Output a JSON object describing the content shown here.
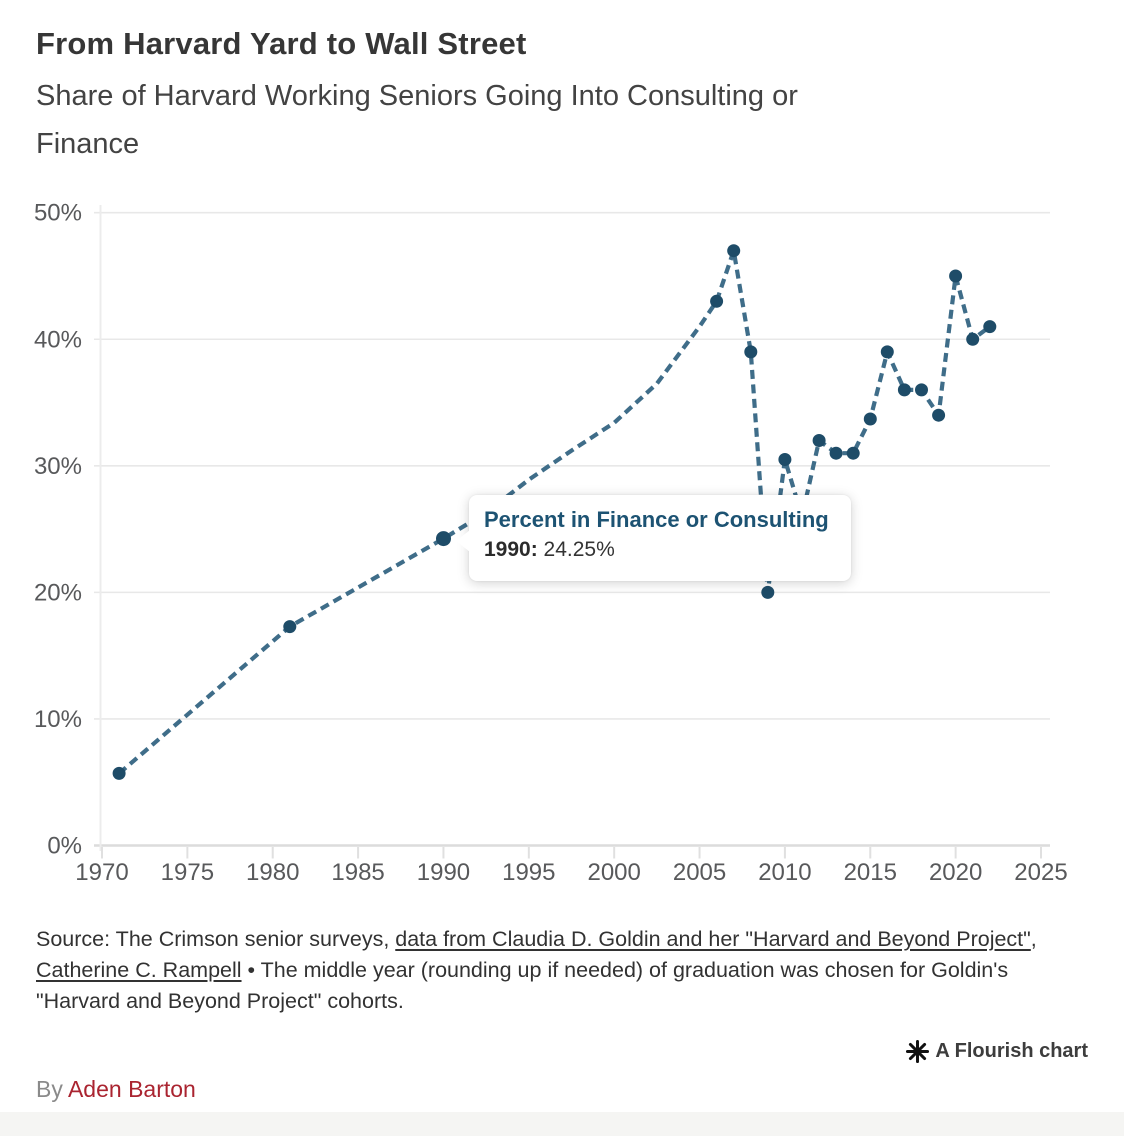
{
  "header": {
    "title": "From Harvard Yard to Wall Street",
    "subtitle_line1": "Share of Harvard Working Seniors Going Into Consulting or",
    "subtitle_line2": "Finance"
  },
  "chart_data": {
    "type": "line",
    "title": "From Harvard Yard to Wall Street",
    "subtitle": "Share of Harvard Working Seniors Going Into Consulting or Finance",
    "xlim": [
      1970,
      2025
    ],
    "ylim": [
      0,
      50
    ],
    "x_ticks": [
      1970,
      1975,
      1980,
      1985,
      1990,
      1995,
      2000,
      2005,
      2010,
      2015,
      2020,
      2025
    ],
    "y_ticks": [
      0,
      10,
      20,
      30,
      40,
      50
    ],
    "y_tick_suffix": "%",
    "grid": "horizontal",
    "line_style": "dashed",
    "line_color": "#3f6d89",
    "dot_color": "#1e4c68",
    "legend": "none",
    "series": [
      {
        "name": "Percent in Finance or Consulting",
        "points": [
          {
            "year": 1971,
            "value": 5.7,
            "marker": true
          },
          {
            "year": 1981,
            "value": 17.3,
            "marker": true
          },
          {
            "year": 1990,
            "value": 24.25,
            "marker": true,
            "highlight": true
          },
          {
            "year": 1992.5,
            "value": 26.3,
            "marker": false,
            "interpolated": true
          },
          {
            "year": 1995,
            "value": 28.9,
            "marker": false,
            "interpolated": true
          },
          {
            "year": 1997.5,
            "value": 31.2,
            "marker": false,
            "interpolated": true
          },
          {
            "year": 2000,
            "value": 33.4,
            "marker": false,
            "interpolated": true
          },
          {
            "year": 2002.5,
            "value": 36.5,
            "marker": false,
            "interpolated": true
          },
          {
            "year": 2005,
            "value": 41.0,
            "marker": false,
            "interpolated": true
          },
          {
            "year": 2006,
            "value": 43,
            "marker": true
          },
          {
            "year": 2007,
            "value": 47,
            "marker": true
          },
          {
            "year": 2008,
            "value": 39,
            "marker": true
          },
          {
            "year": 2009,
            "value": 20,
            "marker": true
          },
          {
            "year": 2010,
            "value": 30.5,
            "marker": true
          },
          {
            "year": 2011,
            "value": 26,
            "marker": true,
            "note": "hidden behind tooltip"
          },
          {
            "year": 2012,
            "value": 32,
            "marker": true
          },
          {
            "year": 2013,
            "value": 31,
            "marker": true
          },
          {
            "year": 2014,
            "value": 31,
            "marker": true
          },
          {
            "year": 2015,
            "value": 33.7,
            "marker": true
          },
          {
            "year": 2016,
            "value": 39,
            "marker": true
          },
          {
            "year": 2017,
            "value": 36,
            "marker": true
          },
          {
            "year": 2018,
            "value": 36,
            "marker": true
          },
          {
            "year": 2019,
            "value": 34,
            "marker": true
          },
          {
            "year": 2020,
            "value": 45,
            "marker": true
          },
          {
            "year": 2021,
            "value": 40,
            "marker": true
          },
          {
            "year": 2022,
            "value": 41,
            "marker": true
          }
        ]
      }
    ]
  },
  "tooltip": {
    "title": "Percent in Finance or Consulting",
    "year_label": "1990:",
    "value": " 24.25%"
  },
  "source": {
    "prefix": "Source: The Crimson senior surveys, ",
    "link1": "data from Claudia D. Goldin and her \"Harvard and Beyond Project\"",
    "sep": ", ",
    "link2": "Catherine C. Rampell",
    "suffix": " • The middle year (rounding up if needed) of graduation was chosen for Goldin's \"Harvard and Beyond Project\" cohorts."
  },
  "attribution": {
    "icon": "flourish-asterisk-icon",
    "label": "A Flourish chart"
  },
  "byline": {
    "prefix": "By ",
    "author": "Aden Barton"
  },
  "colors": {
    "line": "#3f6d89",
    "dot": "#1e4c68",
    "tooltip_title": "#1d5373",
    "byline_red": "#aa2430",
    "grid": "#e8e8e8",
    "axis_text": "#58595b"
  }
}
